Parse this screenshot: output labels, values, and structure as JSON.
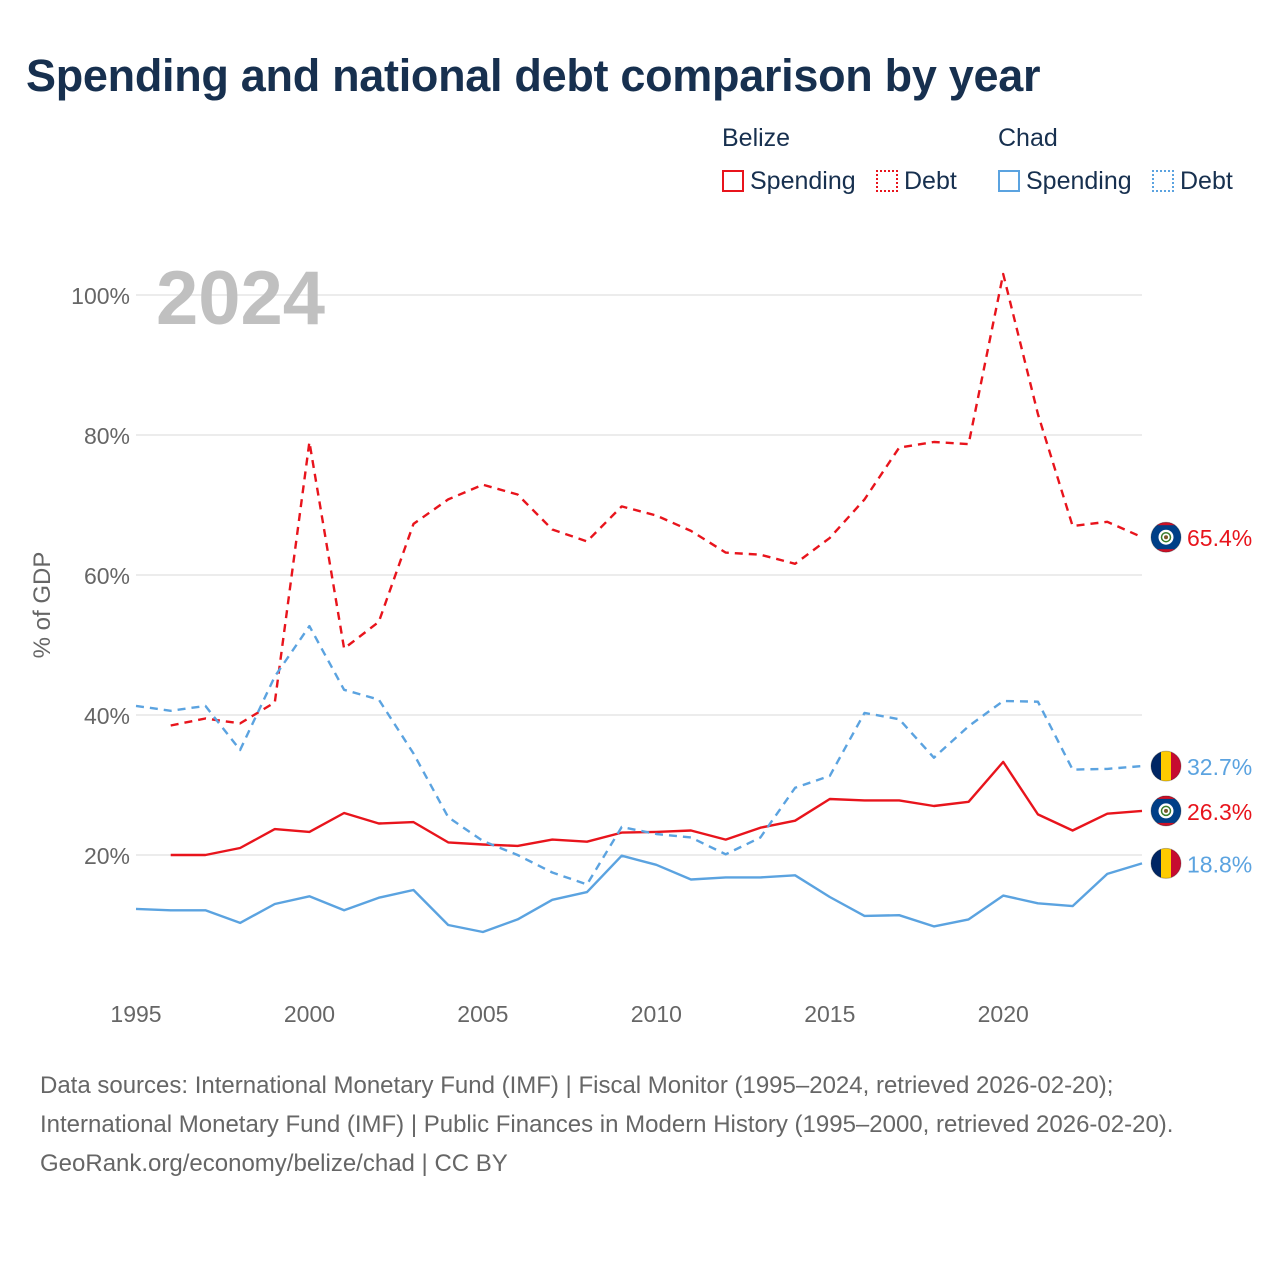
{
  "chart_data": {
    "type": "line",
    "title": "Spending and national debt comparison by year",
    "year_watermark": "2024",
    "ylabel": "% of GDP",
    "xlabel": "",
    "xlim": [
      1995,
      2024
    ],
    "ylim": [
      0,
      110
    ],
    "y_ticks": [
      20,
      40,
      60,
      80,
      100
    ],
    "y_tick_labels": [
      "20%",
      "40%",
      "60%",
      "80%",
      "100%"
    ],
    "x_ticks": [
      1995,
      2000,
      2005,
      2010,
      2015,
      2020
    ],
    "x_tick_labels": [
      "1995",
      "2000",
      "2005",
      "2010",
      "2015",
      "2020"
    ],
    "grid": true,
    "legend": {
      "placement": "top-right",
      "groups": [
        {
          "name": "Belize",
          "items": [
            {
              "label": "Spending",
              "style": "solid"
            },
            {
              "label": "Debt",
              "style": "dotted"
            }
          ]
        },
        {
          "name": "Chad",
          "items": [
            {
              "label": "Spending",
              "style": "solid"
            },
            {
              "label": "Debt",
              "style": "dotted"
            }
          ]
        }
      ]
    },
    "series": [
      {
        "id": "belize-debt",
        "name": "Belize Debt",
        "country": "belize",
        "color": "#e8141c",
        "style": "dashed",
        "x": [
          1996,
          1997,
          1998,
          1999,
          2000,
          2001,
          2002,
          2003,
          2004,
          2005,
          2006,
          2007,
          2008,
          2009,
          2010,
          2011,
          2012,
          2013,
          2014,
          2015,
          2016,
          2017,
          2018,
          2019,
          2020,
          2021,
          2022,
          2023,
          2024
        ],
        "values": [
          38.5,
          39.5,
          38.8,
          41.8,
          79.0,
          49.5,
          53.3,
          67.3,
          70.8,
          72.9,
          71.5,
          66.5,
          64.8,
          69.8,
          68.5,
          66.3,
          63.2,
          62.9,
          61.6,
          65.3,
          70.8,
          78.2,
          79.0,
          78.7,
          103.0,
          83.0,
          67.0,
          67.6,
          65.4
        ],
        "end_label": "65.4%"
      },
      {
        "id": "belize-spending",
        "name": "Belize Spending",
        "country": "belize",
        "color": "#e8141c",
        "style": "solid",
        "x": [
          1996,
          1997,
          1998,
          1999,
          2000,
          2001,
          2002,
          2003,
          2004,
          2005,
          2006,
          2007,
          2008,
          2009,
          2010,
          2011,
          2012,
          2013,
          2014,
          2015,
          2016,
          2017,
          2018,
          2019,
          2020,
          2021,
          2022,
          2023,
          2024
        ],
        "values": [
          20.0,
          20.0,
          21.0,
          23.7,
          23.3,
          26.0,
          24.5,
          24.7,
          21.8,
          21.5,
          21.3,
          22.2,
          21.9,
          23.2,
          23.3,
          23.5,
          22.2,
          23.9,
          24.9,
          28.0,
          27.8,
          27.8,
          27.0,
          27.6,
          33.3,
          25.8,
          23.5,
          25.9,
          26.3
        ],
        "end_label": "26.3%"
      },
      {
        "id": "chad-debt",
        "name": "Chad Debt",
        "country": "chad",
        "color": "#5ba3e0",
        "style": "dashed",
        "x": [
          1995,
          1996,
          1997,
          1998,
          1999,
          2000,
          2001,
          2002,
          2003,
          2004,
          2005,
          2006,
          2007,
          2008,
          2009,
          2010,
          2011,
          2012,
          2013,
          2014,
          2015,
          2016,
          2017,
          2018,
          2019,
          2020,
          2021,
          2022,
          2023,
          2024
        ],
        "values": [
          41.3,
          40.6,
          41.3,
          35.0,
          45.5,
          52.7,
          43.6,
          42.2,
          34.5,
          25.4,
          22.0,
          20.0,
          17.5,
          15.8,
          24.0,
          23.0,
          22.5,
          20.1,
          22.5,
          29.6,
          31.3,
          40.3,
          39.4,
          33.9,
          38.4,
          42.0,
          41.9,
          32.2,
          32.3,
          32.7
        ],
        "end_label": "32.7%"
      },
      {
        "id": "chad-spending",
        "name": "Chad Spending",
        "country": "chad",
        "color": "#5ba3e0",
        "style": "solid",
        "x": [
          1995,
          1996,
          1997,
          1998,
          1999,
          2000,
          2001,
          2002,
          2003,
          2004,
          2005,
          2006,
          2007,
          2008,
          2009,
          2010,
          2011,
          2012,
          2013,
          2014,
          2015,
          2016,
          2017,
          2018,
          2019,
          2020,
          2021,
          2022,
          2023,
          2024
        ],
        "values": [
          12.3,
          12.1,
          12.1,
          10.3,
          13.0,
          14.1,
          12.1,
          13.9,
          15.0,
          10.0,
          9.0,
          10.8,
          13.6,
          14.7,
          19.9,
          18.6,
          16.5,
          16.8,
          16.8,
          17.1,
          14.0,
          11.3,
          11.4,
          9.8,
          10.8,
          14.2,
          13.1,
          12.7,
          17.3,
          18.8
        ],
        "end_label": "18.8%"
      }
    ]
  },
  "header": {
    "title": "Spending and national debt comparison by year"
  },
  "legend": {
    "belize": {
      "title": "Belize",
      "spending": "Spending",
      "debt": "Debt"
    },
    "chad": {
      "title": "Chad",
      "spending": "Spending",
      "debt": "Debt"
    }
  },
  "colors": {
    "belize": "#e8141c",
    "chad": "#5ba3e0",
    "title": "#17304f",
    "axis_text": "#666666",
    "watermark": "#c0c0c0",
    "grid": "#e6e6e6"
  },
  "flags": {
    "belize": {
      "icon": "belize-flag-icon",
      "colors": [
        "#003f87",
        "#ce1126",
        "#ffffff"
      ]
    },
    "chad": {
      "icon": "chad-flag-icon",
      "colors": [
        "#002664",
        "#fecb00",
        "#c60c30"
      ]
    }
  },
  "footer": {
    "sources_line": "Data sources: International Monetary Fund (IMF) | Fiscal Monitor (1995–2024, retrieved 2026-02-20); International Monetary Fund (IMF) | Public Finances in Modern History (1995–2000, retrieved 2026-02-20).",
    "attribution": "GeoRank.org/economy/belize/chad | CC BY"
  }
}
